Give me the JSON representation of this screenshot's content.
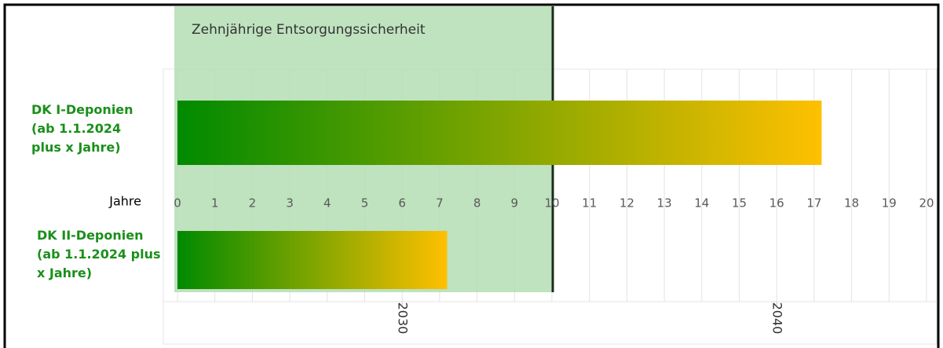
{
  "chart_data": {
    "type": "bar",
    "orientation": "horizontal",
    "categories": [
      "DK I-Deponien (ab 1.1.2024 plus x Jahre)",
      "DK II-Deponien (ab 1.1.2024 plus x Jahre)"
    ],
    "values": [
      17.2,
      7.2
    ],
    "gradient": [
      "#008a00",
      "#ffc000"
    ],
    "xlabel": "Jahre",
    "xlim": [
      0,
      20
    ],
    "xticks": [
      0,
      1,
      2,
      3,
      4,
      5,
      6,
      7,
      8,
      9,
      10,
      11,
      12,
      13,
      14,
      15,
      16,
      17,
      18,
      19,
      20
    ],
    "x2ticks": [
      {
        "value": 6,
        "label": "2030"
      },
      {
        "value": 16,
        "label": "2040"
      }
    ],
    "grid": true,
    "annotation": {
      "text": "Zehnjährige Entsorgungssicherheit",
      "xrange": [
        0,
        10
      ],
      "color": "#b4ddb4",
      "line_color": "#1a2e1a"
    }
  }
}
